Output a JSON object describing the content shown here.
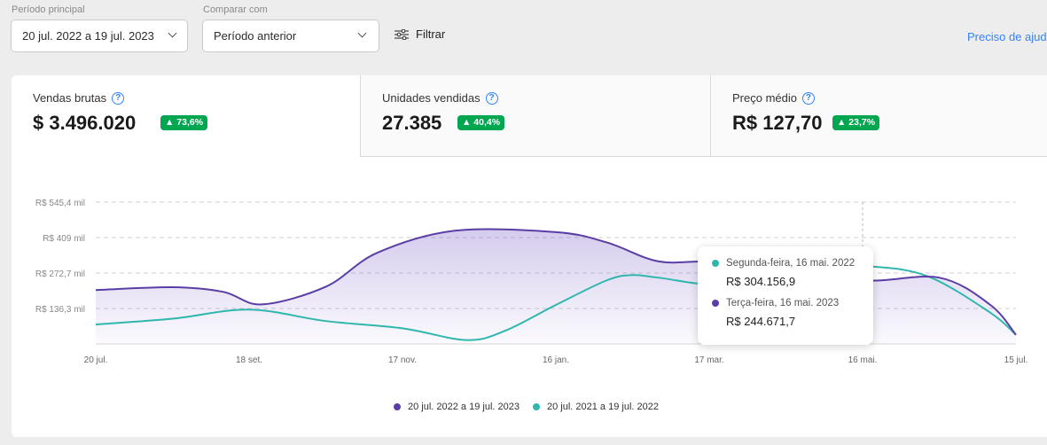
{
  "filters": {
    "main_period_label": "Período principal",
    "main_period_value": "20 jul. 2022 a 19 jul. 2023",
    "compare_label": "Comparar com",
    "compare_value": "Período anterior",
    "filter_label": "Filtrar",
    "help_link": "Preciso de ajuda"
  },
  "kpis": [
    {
      "label": "Vendas brutas",
      "value": "$ 3.496.020",
      "change": "▲ 73,6%",
      "icon": "question-circle-icon"
    },
    {
      "label": "Unidades vendidas",
      "value": "27.385",
      "change": "▲ 40,4%",
      "icon": "question-circle-icon"
    },
    {
      "label": "Preço médio",
      "value": "R$ 127,70",
      "change": "▲ 23,7%",
      "icon": "question-circle-icon"
    }
  ],
  "colors": {
    "current": "#5b3ea5",
    "previous": "#2fb7ad",
    "badge": "#00a650",
    "link": "#3483fa"
  },
  "tooltip": {
    "previous_date": "Segunda-feira, 16 mai. 2022",
    "previous_value": "R$ 304.156,9",
    "current_date": "Terça-feira, 16 mai. 2023",
    "current_value": "R$ 244.671,7"
  },
  "chart_data": {
    "type": "area",
    "x_ticks": [
      "20 jul.",
      "18 set.",
      "17 nov.",
      "16 jan.",
      "17 mar.",
      "16 mai.",
      "15 jul."
    ],
    "y_ticks": [
      "R$ 136,3 mil",
      "R$ 272,7 mil",
      "R$ 409 mil",
      "R$ 545,4 mil"
    ],
    "y_tick_values": [
      136.3,
      272.7,
      409,
      545.4
    ],
    "ylim": [
      0,
      545.4
    ],
    "x_range": [
      0,
      360
    ],
    "y_unit": "R$ mil",
    "grid": true,
    "legend_position": "bottom",
    "series": [
      {
        "name": "20 jul. 2022 a 19 jul. 2023",
        "color": "#5b3ea5",
        "fill": true,
        "x": [
          0,
          30,
          50,
          65,
          90,
          110,
          140,
          180,
          200,
          220,
          240,
          270,
          300,
          330,
          350,
          360
        ],
        "y": [
          207,
          218,
          200,
          152,
          220,
          350,
          435,
          430,
          390,
          318,
          318,
          310,
          245,
          255,
          150,
          35
        ]
      },
      {
        "name": "20 jul. 2021 a 19 jul. 2022",
        "color": "#2fb7ad",
        "fill": false,
        "x": [
          0,
          30,
          60,
          90,
          120,
          145,
          160,
          180,
          200,
          210,
          220,
          245,
          270,
          300,
          325,
          350,
          360
        ],
        "y": [
          75,
          97,
          132,
          88,
          60,
          15,
          50,
          150,
          245,
          265,
          255,
          230,
          304,
          300,
          262,
          120,
          35
        ]
      }
    ]
  }
}
